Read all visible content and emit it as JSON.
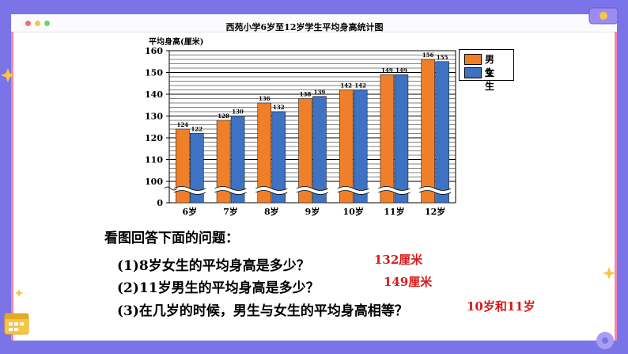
{
  "colors": {
    "boys": "#f07f2a",
    "girls": "#3e72c2",
    "answer": "#d81818"
  },
  "chart_data": {
    "type": "bar",
    "title": "西苑小学6岁至12岁学生平均身高统计图",
    "ylabel": "平均身高(厘米)",
    "xlabel": "",
    "categories": [
      "6岁",
      "7岁",
      "8岁",
      "9岁",
      "10岁",
      "11岁",
      "12岁"
    ],
    "series": [
      {
        "name": "男生",
        "values": [
          124,
          128,
          136,
          138,
          142,
          149,
          156
        ]
      },
      {
        "name": "女生",
        "values": [
          122,
          130,
          132,
          139,
          142,
          149,
          155
        ]
      }
    ],
    "yticks": [
      "0",
      "100",
      "110",
      "120",
      "130",
      "140",
      "150",
      "160"
    ],
    "ylim_broken": [
      100,
      160
    ],
    "axis_break": true,
    "grid": true,
    "legend_position": "top-right"
  },
  "questions": {
    "intro": "看图回答下面的问题：",
    "items": [
      {
        "q": "(1)8岁女生的平均身高是多少？",
        "a": "132厘米"
      },
      {
        "q": "(2)11岁男生的平均身高是多少？",
        "a": "149厘米"
      },
      {
        "q": "(3)在几岁的时候，男生与女生的平均身高相等？",
        "a": "10岁和11岁"
      }
    ]
  }
}
